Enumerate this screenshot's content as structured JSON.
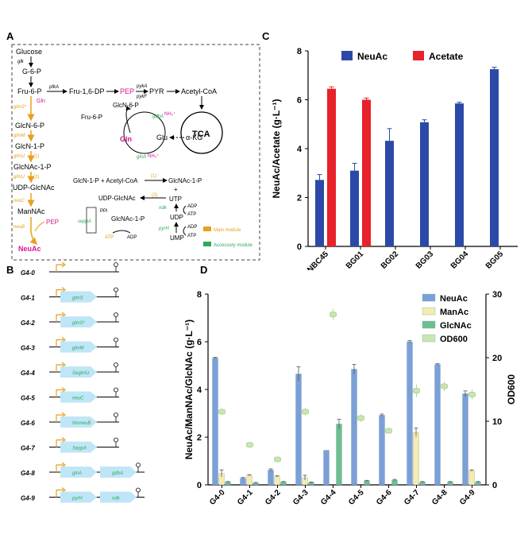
{
  "panels": {
    "a": "A",
    "b": "B",
    "c": "C",
    "d": "D"
  },
  "colors": {
    "neuac": "#2c49a8",
    "acetate": "#e8222a",
    "neuac_d": "#7aa0d6",
    "manac_d": "#f5ecae",
    "glcnac_d": "#6dbf8f",
    "od_d": "#c8e6b0",
    "main_module": "#e8a020",
    "accessory_module": "#2eaa5a",
    "gene_arrow": "#bfe6f7",
    "magenta": "#d4168f"
  },
  "pathway": {
    "main_nodes": [
      "Glucose",
      "G-6-P",
      "Fru-6-P",
      "GlcN-6-P",
      "GlcN-1-P",
      "GlcNAc-1-P",
      "UDP-GlcNAc",
      "ManNAc",
      "NeuAc"
    ],
    "side_nodes": [
      "Fru-1,6-DP",
      "PEP",
      "PYR",
      "Acetyl-CoA",
      "TCA",
      "GlcN-6-P",
      "Fru-6-P",
      "Gln",
      "Glu",
      "α-KG",
      "NH₄⁺",
      "NH₄⁺",
      "Gln",
      "PEP"
    ],
    "enzymes": [
      "glk",
      "pfkA",
      "pykA",
      "pykF",
      "glmS*",
      "glmM",
      "glmU",
      "(1)",
      "glmU",
      "(2)",
      "neuC",
      "neuB",
      "gdhA",
      "glnA"
    ],
    "reaction1": {
      "lhs": "GlcN-1-P + Acetyl-CoA",
      "rhs": "GlcNAc-1-P",
      "num": "(1)"
    },
    "reaction2": {
      "lhs": "UDP-GlcNAc",
      "num": "(2)",
      "plus": "+",
      "utp": "UTP",
      "ppi": "PPi",
      "ndk": "ndk",
      "adp1": "ADP",
      "atp1": "ATP",
      "udp": "UDP",
      "sub": "GlcNAc-1-P",
      "ump": "UMP",
      "adp2": "ADP",
      "atp2": "ATP",
      "pyrH": "pyrH",
      "seppA": "seppA",
      "atp3": "ATP",
      "adp3": "ADP"
    },
    "legend": {
      "main": "Main module",
      "accessory": "Accessory module"
    }
  },
  "constructs": [
    {
      "name": "G4-0",
      "genes": []
    },
    {
      "name": "G4-1",
      "genes": [
        "glmS"
      ]
    },
    {
      "name": "G4-2",
      "genes": [
        "glmS*"
      ]
    },
    {
      "name": "G4-3",
      "genes": [
        "glmM"
      ]
    },
    {
      "name": "G4-4",
      "genes": [
        "SeglmU"
      ]
    },
    {
      "name": "G4-5",
      "genes": [
        "neuC"
      ]
    },
    {
      "name": "G4-6",
      "genes": [
        "NmneuB"
      ]
    },
    {
      "name": "G4-7",
      "genes": [
        "SeppA"
      ]
    },
    {
      "name": "G4-8",
      "genes": [
        "glnA",
        "gdhA"
      ]
    },
    {
      "name": "G4-9",
      "genes": [
        "pyrH",
        "ndk"
      ]
    }
  ],
  "chart_data": [
    {
      "type": "bar",
      "categories": [
        "NBC45",
        "BG01",
        "BG02",
        "BG03",
        "BG04",
        "BG05"
      ],
      "series": [
        {
          "name": "NeuAc",
          "values": [
            2.72,
            3.1,
            4.32,
            5.08,
            5.85,
            7.25
          ],
          "errors": [
            0.22,
            0.3,
            0.5,
            0.1,
            0.05,
            0.08
          ]
        },
        {
          "name": "Acetate",
          "values": [
            6.45,
            6.0,
            null,
            null,
            null,
            null
          ],
          "errors": [
            0.08,
            0.07,
            null,
            null,
            null,
            null
          ]
        }
      ],
      "ylabel": "NeuAc/Acetate (g·L⁻¹)",
      "ylim": [
        0,
        8
      ],
      "yticks": [
        "0",
        "2",
        "4",
        "6",
        "8"
      ],
      "legend": "top"
    },
    {
      "type": "bar",
      "categories": [
        "G4-0",
        "G4-1",
        "G4-2",
        "G4-3",
        "G4-4",
        "G4-5",
        "G4-6",
        "G4-7",
        "G4-8",
        "G4-9"
      ],
      "series": [
        {
          "name": "NeuAc",
          "values": [
            5.32,
            0.28,
            0.62,
            4.65,
            1.45,
            4.85,
            2.92,
            6.0,
            5.05,
            3.82
          ],
          "errors": [
            0.03,
            0.03,
            0.05,
            0.3,
            0.0,
            0.2,
            0.05,
            0.05,
            0.03,
            0.12
          ]
        },
        {
          "name": "ManAc",
          "values": [
            0.48,
            0.4,
            0.35,
            0.3,
            null,
            null,
            null,
            2.2,
            null,
            0.6
          ],
          "errors": [
            0.15,
            0.03,
            0.03,
            0.1,
            null,
            null,
            null,
            0.18,
            null,
            0.03
          ]
        },
        {
          "name": "GlcNAc",
          "values": [
            0.12,
            0.08,
            0.12,
            0.1,
            2.55,
            0.17,
            0.2,
            0.12,
            0.12,
            0.12
          ],
          "errors": [
            0.02,
            0.02,
            0.02,
            0.02,
            0.2,
            0.02,
            0.03,
            0.02,
            0.02,
            0.02
          ]
        },
        {
          "name": "OD600",
          "axis": "right",
          "values": [
            11.5,
            6.3,
            4.0,
            11.5,
            26.8,
            10.5,
            8.5,
            14.8,
            15.5,
            14.2
          ],
          "errors": [
            0.5,
            0.4,
            0.3,
            0.6,
            0.9,
            0.6,
            0.4,
            1.0,
            0.8,
            0.8
          ]
        }
      ],
      "ylabel": "NeuAc/ManNAc/GlcNAc (g·L⁻¹)",
      "y2label": "OD600",
      "ylim": [
        0,
        8
      ],
      "y2lim": [
        0,
        30
      ],
      "yticks": [
        "0",
        "2",
        "4",
        "6",
        "8"
      ],
      "y2ticks": [
        "0",
        "10",
        "20",
        "30"
      ],
      "legend": "top-right"
    }
  ]
}
